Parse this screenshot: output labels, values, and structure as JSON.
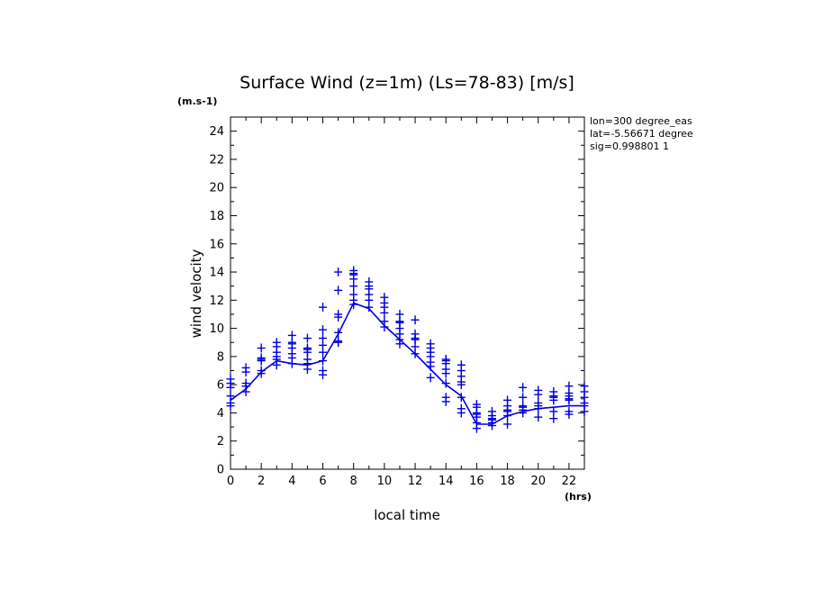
{
  "chart_data": {
    "type": "scatter",
    "title": "Surface Wind (z=1m) (Ls=78-83) [m/s]",
    "y_unit": "(m.s-1)",
    "x_unit": "(hrs)",
    "xlabel": "local time",
    "ylabel": "wind velocity",
    "info": [
      "lon=300 degree_eas",
      "lat=-5.56671 degree",
      "sig=0.998801 1"
    ],
    "xlim": [
      0,
      23
    ],
    "ylim": [
      0,
      25
    ],
    "xticks": [
      0,
      2,
      4,
      6,
      8,
      10,
      12,
      14,
      16,
      18,
      20,
      22
    ],
    "yticks": [
      0,
      2,
      4,
      6,
      8,
      10,
      12,
      14,
      16,
      18,
      20,
      22,
      24
    ],
    "color": "#0000dd",
    "series": [
      {
        "type": "line",
        "x": [
          0,
          1,
          2,
          3,
          4,
          5,
          6,
          7,
          8,
          9,
          10,
          11,
          12,
          13,
          14,
          15,
          16,
          17,
          18,
          19,
          20,
          21,
          22,
          23
        ],
        "y": [
          4.9,
          5.7,
          6.9,
          7.7,
          7.5,
          7.4,
          7.7,
          9.6,
          11.8,
          11.4,
          10.2,
          9.2,
          8.2,
          7.1,
          6.0,
          5.2,
          3.2,
          3.2,
          3.8,
          4.1,
          4.3,
          4.4,
          4.5,
          4.5
        ]
      },
      {
        "type": "scatter",
        "marker": "+",
        "points": [
          [
            0,
            4.5
          ],
          [
            0,
            4.7
          ],
          [
            0,
            5.2
          ],
          [
            0,
            5.8
          ],
          [
            0,
            6.1
          ],
          [
            0,
            6.4
          ],
          [
            1,
            5.5
          ],
          [
            1,
            5.9
          ],
          [
            1,
            6.1
          ],
          [
            1,
            6.9
          ],
          [
            1,
            7.2
          ],
          [
            2,
            6.8
          ],
          [
            2,
            7.0
          ],
          [
            2,
            7.7
          ],
          [
            2,
            7.8
          ],
          [
            2,
            7.9
          ],
          [
            2,
            8.6
          ],
          [
            3,
            7.4
          ],
          [
            3,
            7.8
          ],
          [
            3,
            8.0
          ],
          [
            3,
            8.3
          ],
          [
            3,
            8.7
          ],
          [
            3,
            9.0
          ],
          [
            4,
            7.5
          ],
          [
            4,
            7.9
          ],
          [
            4,
            8.2
          ],
          [
            4,
            8.6
          ],
          [
            4,
            8.9
          ],
          [
            4,
            9.0
          ],
          [
            4,
            9.5
          ],
          [
            5,
            7.1
          ],
          [
            5,
            7.5
          ],
          [
            5,
            7.8
          ],
          [
            5,
            8.3
          ],
          [
            5,
            8.5
          ],
          [
            5,
            8.6
          ],
          [
            5,
            9.3
          ],
          [
            6,
            6.7
          ],
          [
            6,
            7.0
          ],
          [
            6,
            7.7
          ],
          [
            6,
            8.3
          ],
          [
            6,
            8.8
          ],
          [
            6,
            9.3
          ],
          [
            6,
            9.9
          ],
          [
            6,
            11.5
          ],
          [
            7,
            9.0
          ],
          [
            7,
            9.1
          ],
          [
            7,
            9.7
          ],
          [
            7,
            10.8
          ],
          [
            7,
            11.0
          ],
          [
            7,
            12.7
          ],
          [
            7,
            14.0
          ],
          [
            8,
            11.7
          ],
          [
            8,
            12.0
          ],
          [
            8,
            12.4
          ],
          [
            8,
            13.0
          ],
          [
            8,
            13.5
          ],
          [
            8,
            13.8
          ],
          [
            8,
            13.9
          ],
          [
            8,
            14.1
          ],
          [
            9,
            11.5
          ],
          [
            9,
            12.0
          ],
          [
            9,
            12.4
          ],
          [
            9,
            12.8
          ],
          [
            9,
            13.0
          ],
          [
            9,
            13.3
          ],
          [
            10,
            10.1
          ],
          [
            10,
            10.5
          ],
          [
            10,
            11.1
          ],
          [
            10,
            11.5
          ],
          [
            10,
            11.8
          ],
          [
            10,
            12.2
          ],
          [
            11,
            8.9
          ],
          [
            11,
            9.2
          ],
          [
            11,
            9.6
          ],
          [
            11,
            10.0
          ],
          [
            11,
            10.4
          ],
          [
            11,
            10.5
          ],
          [
            11,
            11.0
          ],
          [
            12,
            8.2
          ],
          [
            12,
            8.7
          ],
          [
            12,
            9.2
          ],
          [
            12,
            9.3
          ],
          [
            12,
            9.6
          ],
          [
            12,
            10.6
          ],
          [
            13,
            6.5
          ],
          [
            13,
            7.3
          ],
          [
            13,
            7.6
          ],
          [
            13,
            8.0
          ],
          [
            13,
            8.3
          ],
          [
            13,
            8.6
          ],
          [
            13,
            8.9
          ],
          [
            14,
            4.8
          ],
          [
            14,
            5.1
          ],
          [
            14,
            6.1
          ],
          [
            14,
            6.8
          ],
          [
            14,
            7.1
          ],
          [
            14,
            7.5
          ],
          [
            14,
            7.7
          ],
          [
            14,
            7.8
          ],
          [
            15,
            4.0
          ],
          [
            15,
            4.3
          ],
          [
            15,
            5.1
          ],
          [
            15,
            6.0
          ],
          [
            15,
            6.2
          ],
          [
            15,
            6.6
          ],
          [
            15,
            7.0
          ],
          [
            15,
            7.4
          ],
          [
            16,
            2.9
          ],
          [
            16,
            3.3
          ],
          [
            16,
            3.7
          ],
          [
            16,
            3.9
          ],
          [
            16,
            4.0
          ],
          [
            16,
            4.4
          ],
          [
            16,
            4.6
          ],
          [
            17,
            3.1
          ],
          [
            17,
            3.3
          ],
          [
            17,
            3.5
          ],
          [
            17,
            3.6
          ],
          [
            17,
            3.8
          ],
          [
            17,
            4.1
          ],
          [
            18,
            3.2
          ],
          [
            18,
            3.8
          ],
          [
            18,
            4.1
          ],
          [
            18,
            4.2
          ],
          [
            18,
            4.5
          ],
          [
            18,
            4.9
          ],
          [
            19,
            4.0
          ],
          [
            19,
            4.2
          ],
          [
            19,
            4.4
          ],
          [
            19,
            4.5
          ],
          [
            19,
            5.1
          ],
          [
            19,
            5.8
          ],
          [
            20,
            3.7
          ],
          [
            20,
            4.3
          ],
          [
            20,
            4.5
          ],
          [
            20,
            4.7
          ],
          [
            20,
            5.3
          ],
          [
            20,
            5.6
          ],
          [
            21,
            3.6
          ],
          [
            21,
            4.1
          ],
          [
            21,
            4.9
          ],
          [
            21,
            5.1
          ],
          [
            21,
            5.2
          ],
          [
            21,
            5.5
          ],
          [
            22,
            3.9
          ],
          [
            22,
            4.1
          ],
          [
            22,
            4.9
          ],
          [
            22,
            5.0
          ],
          [
            22,
            5.2
          ],
          [
            22,
            5.4
          ],
          [
            22,
            5.9
          ],
          [
            23,
            4.1
          ],
          [
            23,
            4.5
          ],
          [
            23,
            4.7
          ],
          [
            23,
            5.1
          ],
          [
            23,
            5.5
          ],
          [
            23,
            5.9
          ]
        ]
      }
    ]
  }
}
